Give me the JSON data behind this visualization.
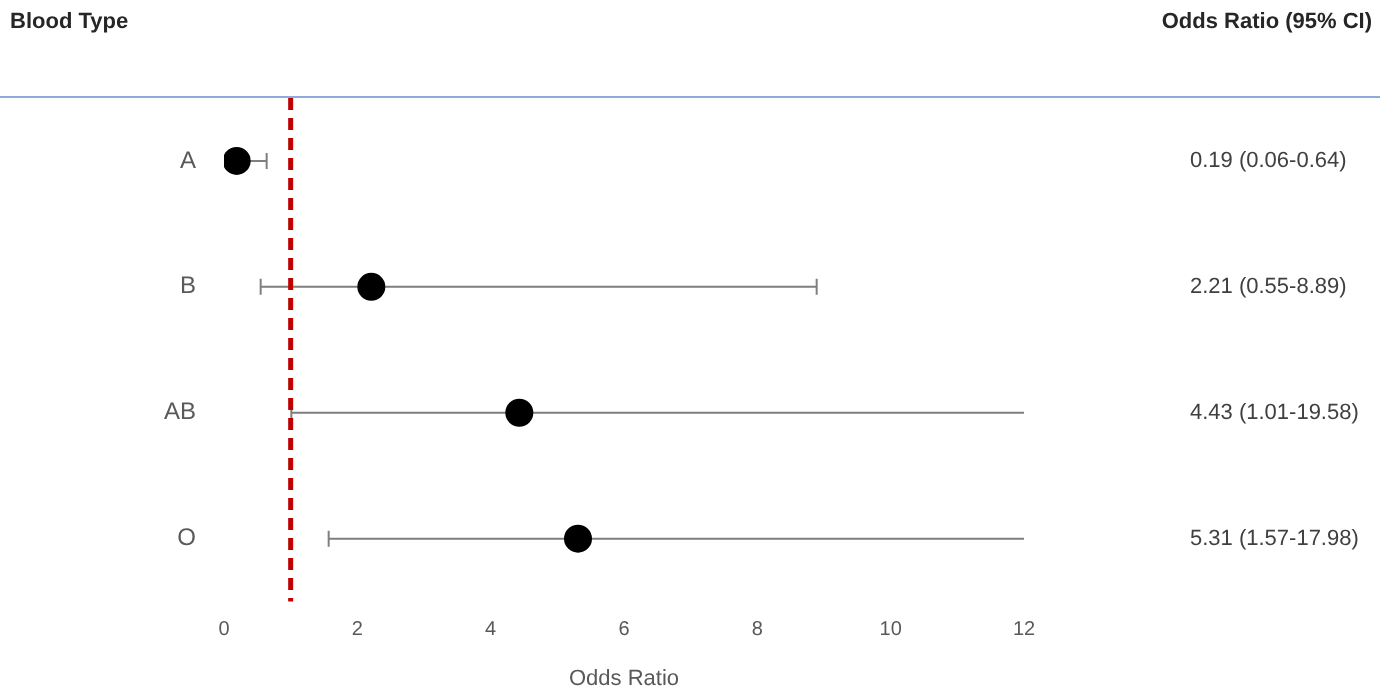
{
  "chart_data": {
    "type": "scatter",
    "orientation": "horizontal",
    "xlabel": "Odds Ratio",
    "categories": [
      "A",
      "B",
      "AB",
      "O"
    ],
    "series": [
      {
        "color": "#000000",
        "values": [
          0.19,
          2.21,
          4.43,
          5.31
        ],
        "errors": [
          [
            0.06,
            0.64
          ],
          [
            0.55,
            8.89
          ],
          [
            1.01,
            19.58
          ],
          [
            1.57,
            17.98
          ]
        ]
      }
    ],
    "xlim": [
      0,
      12
    ],
    "xticks": [
      0,
      2,
      4,
      6,
      8,
      10,
      12
    ],
    "annotations": [
      "Blood Type",
      "Odds Ratio (95% CI)",
      "0.19 (0.06-0.64)",
      "2.21 (0.55-8.89)",
      "4.43 (1.01-19.58)",
      "5.31 (1.57-17.98)"
    ],
    "ref_lines": [
      {
        "axis": "x",
        "value": 1,
        "color": "#c00000",
        "line_style": "dashed"
      }
    ],
    "marker": "circle",
    "grid": false,
    "legend": false
  }
}
